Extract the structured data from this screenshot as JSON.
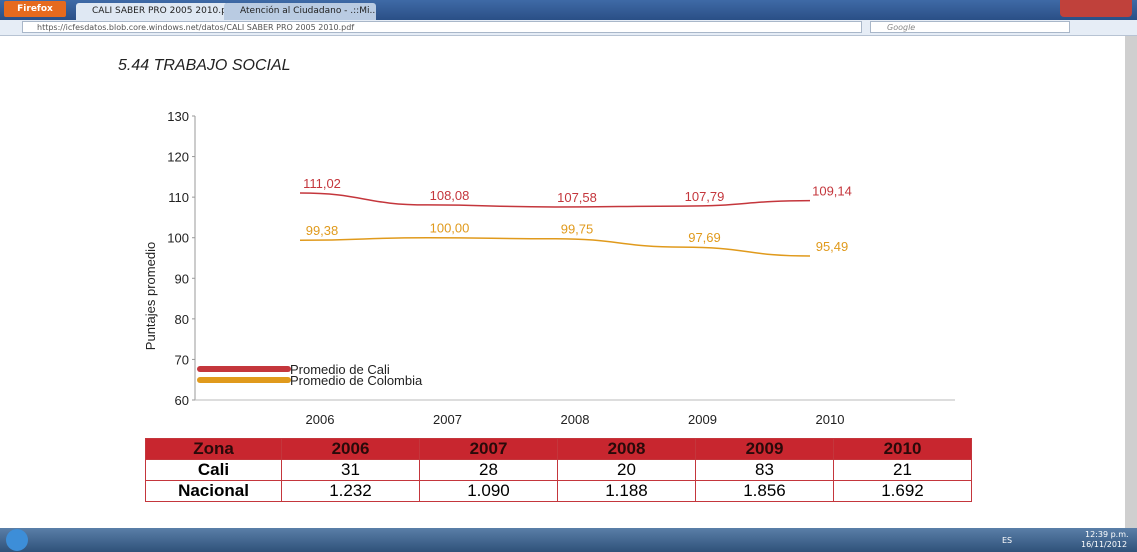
{
  "browser": {
    "app_button": "Firefox",
    "tabs": [
      "CALI SABER PRO 2005 2010.p...",
      "Atención al Ciudadano - .::Mi..."
    ],
    "url": "https://icfesdatos.blob.core.windows.net/datos/CALI SABER PRO 2005 2010.pdf",
    "search": "Google"
  },
  "chart_data": {
    "type": "line",
    "title": "5.44 TRABAJO SOCIAL",
    "y_label": "Puntajes promedio",
    "categories": [
      "2006",
      "2007",
      "2008",
      "2009",
      "2010"
    ],
    "series": [
      {
        "name": "Promedio de Cali",
        "color": "#c4363c",
        "values": [
          111.02,
          108.08,
          107.58,
          107.79,
          109.14
        ],
        "value_labels": [
          "111,02",
          "108,08",
          "107,58",
          "107,79",
          "109,14"
        ]
      },
      {
        "name": "Promedio de Colombia",
        "color": "#e09a1c",
        "values": [
          99.38,
          100.0,
          99.75,
          97.69,
          95.49
        ],
        "value_labels": [
          "99,38",
          "100,00",
          "99,75",
          "97,69",
          "95,49"
        ]
      }
    ],
    "ylim": [
      60,
      130
    ],
    "yticks": [
      60,
      70,
      80,
      90,
      100,
      110,
      120,
      130
    ],
    "grid": false,
    "legend": "lower left"
  },
  "table": {
    "header": [
      "Zona",
      "2006",
      "2007",
      "2008",
      "2009",
      "2010"
    ],
    "rows": [
      [
        "Cali",
        "31",
        "28",
        "20",
        "83",
        "21"
      ],
      [
        "Nacional",
        "1.232",
        "1.090",
        "1.188",
        "1.856",
        "1.692"
      ]
    ]
  },
  "taskbar": {
    "language": "ES",
    "time": "12:39 p.m.",
    "date": "16/11/2012"
  }
}
